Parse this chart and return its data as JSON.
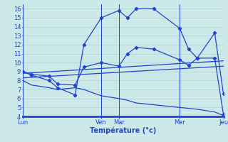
{
  "xlabel": "Température (°c)",
  "background_color": "#cce8e8",
  "grid_color": "#aad4d4",
  "line_color": "#2244cc",
  "x_tick_labels": [
    "Lun",
    "Ven",
    "Mar",
    "Mer",
    "Jeu"
  ],
  "x_tick_positions": [
    0,
    9,
    11,
    18,
    23
  ],
  "ylim": [
    4,
    16.5
  ],
  "yticks": [
    4,
    5,
    6,
    7,
    8,
    9,
    10,
    11,
    12,
    13,
    14,
    15,
    16
  ],
  "xlim": [
    0,
    23
  ],
  "lines": [
    {
      "name": "peak_line",
      "x": [
        0,
        1,
        3,
        4,
        6,
        7,
        9,
        11,
        12,
        13,
        15,
        18,
        19,
        20,
        22,
        23
      ],
      "y": [
        9.0,
        8.6,
        8.0,
        7.2,
        6.4,
        12.0,
        15.0,
        15.8,
        15.0,
        16.0,
        16.0,
        13.8,
        11.5,
        10.5,
        13.3,
        6.5
      ],
      "has_markers": true
    },
    {
      "name": "second_line",
      "x": [
        0,
        1,
        3,
        4,
        6,
        7,
        9,
        11,
        12,
        13,
        15,
        18,
        19,
        20,
        22,
        23
      ],
      "y": [
        9.0,
        8.7,
        8.5,
        7.6,
        7.5,
        9.5,
        10.0,
        9.6,
        11.0,
        11.7,
        11.5,
        10.3,
        9.7,
        10.5,
        10.5,
        4.2
      ],
      "has_markers": true
    },
    {
      "name": "upper_trend",
      "x": [
        0,
        23
      ],
      "y": [
        8.8,
        10.2
      ],
      "has_markers": false
    },
    {
      "name": "lower_trend",
      "x": [
        0,
        23
      ],
      "y": [
        8.3,
        9.6
      ],
      "has_markers": false
    },
    {
      "name": "min_line",
      "x": [
        0,
        1,
        3,
        4,
        6,
        7,
        9,
        11,
        12,
        13,
        15,
        18,
        19,
        20,
        22,
        23
      ],
      "y": [
        8.0,
        7.5,
        7.2,
        7.0,
        7.2,
        7.0,
        6.3,
        6.0,
        5.8,
        5.5,
        5.3,
        5.0,
        4.9,
        4.8,
        4.5,
        4.1
      ],
      "has_markers": false
    }
  ],
  "vlines_x": [
    9,
    11,
    18
  ],
  "figsize": [
    3.2,
    2.0
  ],
  "dpi": 100
}
